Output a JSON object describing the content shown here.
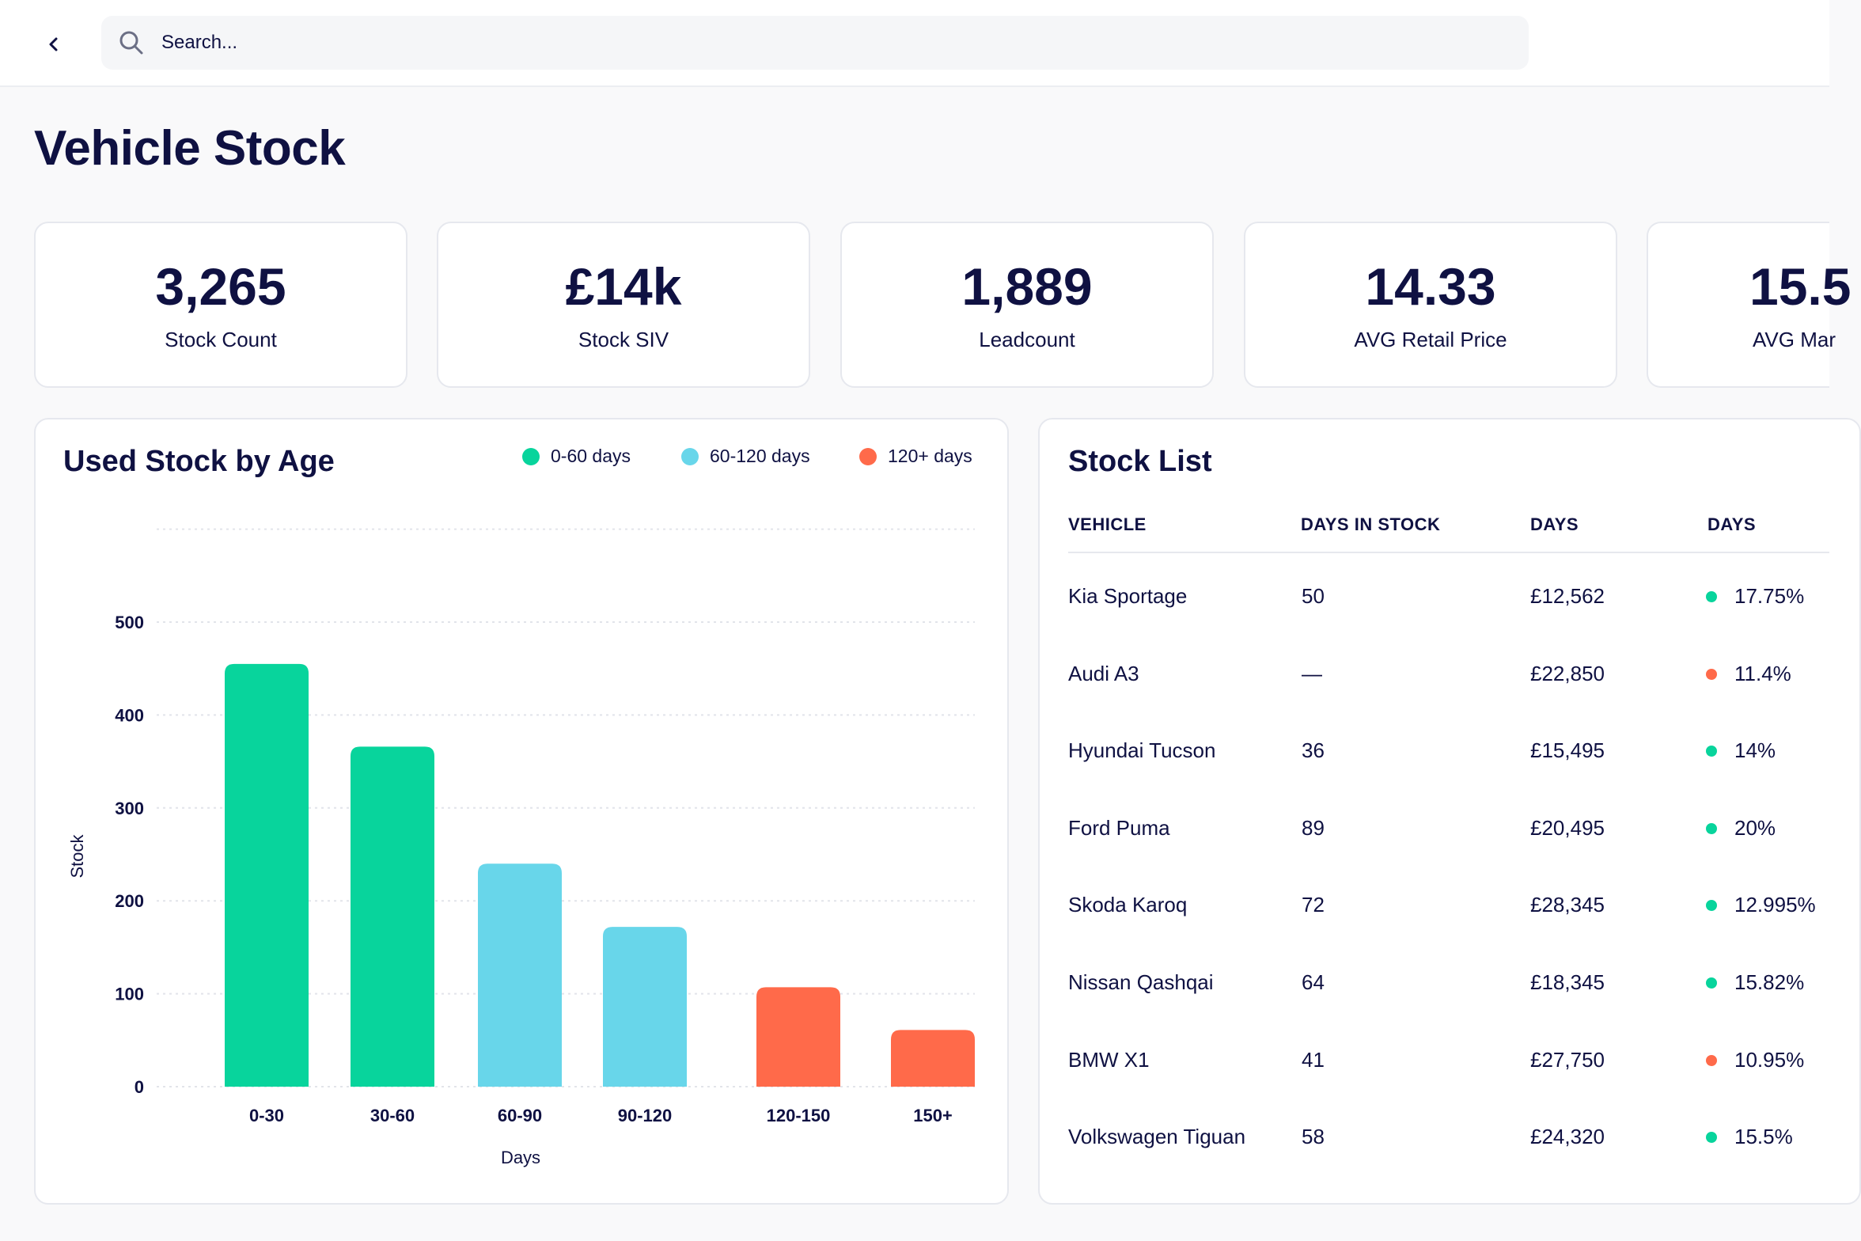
{
  "search": {
    "placeholder": "Search..."
  },
  "page": {
    "title": "Vehicle Stock"
  },
  "kpis": [
    {
      "value": "3,265",
      "label": "Stock Count"
    },
    {
      "value": "£14k",
      "label": "Stock SIV"
    },
    {
      "value": "1,889",
      "label": "Leadcount"
    },
    {
      "value": "14.33",
      "label": "AVG Retail Price"
    },
    {
      "value": "15.5",
      "label": "AVG Mar"
    }
  ],
  "chart_card": {
    "title": "Used Stock by Age",
    "legend": [
      {
        "label": "0-60 days",
        "color": "#08d49c"
      },
      {
        "label": "60-120 days",
        "color": "#68d6ea"
      },
      {
        "label": "120+ days",
        "color": "#ff6a4a"
      }
    ]
  },
  "chart_data": {
    "type": "bar",
    "title": "Used Stock by Age",
    "xlabel": "Days",
    "ylabel": "Stock",
    "categories": [
      "0-30",
      "30-60",
      "60-90",
      "90-120",
      "120-150",
      "150+"
    ],
    "values": [
      455,
      366,
      240,
      172,
      107,
      61
    ],
    "colors": [
      "#08d49c",
      "#08d49c",
      "#68d6ea",
      "#68d6ea",
      "#ff6a4a",
      "#ff6a4a"
    ],
    "yticks": [
      "0",
      "100",
      "200",
      "300",
      "400",
      "500"
    ],
    "ylim": [
      0,
      600
    ],
    "grid": true,
    "legend_position": "top-right"
  },
  "stock_list": {
    "title": "Stock List",
    "columns": [
      "VEHICLE",
      "DAYS IN STOCK",
      "DAYS",
      "DAYS"
    ],
    "rows": [
      {
        "vehicle": "Kia Sportage",
        "days_in_stock": "50",
        "price": "£12,562",
        "pct": "17.75%",
        "status": "green"
      },
      {
        "vehicle": "Audi A3",
        "days_in_stock": "—",
        "price": "£22,850",
        "pct": "11.4%",
        "status": "red"
      },
      {
        "vehicle": "Hyundai Tucson",
        "days_in_stock": "36",
        "price": "£15,495",
        "pct": "14%",
        "status": "green"
      },
      {
        "vehicle": "Ford Puma",
        "days_in_stock": "89",
        "price": "£20,495",
        "pct": "20%",
        "status": "green"
      },
      {
        "vehicle": "Skoda Karoq",
        "days_in_stock": "72",
        "price": "£28,345",
        "pct": "12.995%",
        "status": "green"
      },
      {
        "vehicle": "Nissan Qashqai",
        "days_in_stock": "64",
        "price": "£18,345",
        "pct": "15.82%",
        "status": "green"
      },
      {
        "vehicle": "BMW X1",
        "days_in_stock": "41",
        "price": "£27,750",
        "pct": "10.95%",
        "status": "red"
      },
      {
        "vehicle": "Volkswagen Tiguan",
        "days_in_stock": "58",
        "price": "£24,320",
        "pct": "15.5%",
        "status": "green"
      }
    ],
    "status_colors": {
      "green": "#08d49c",
      "red": "#ff6a4a"
    }
  }
}
